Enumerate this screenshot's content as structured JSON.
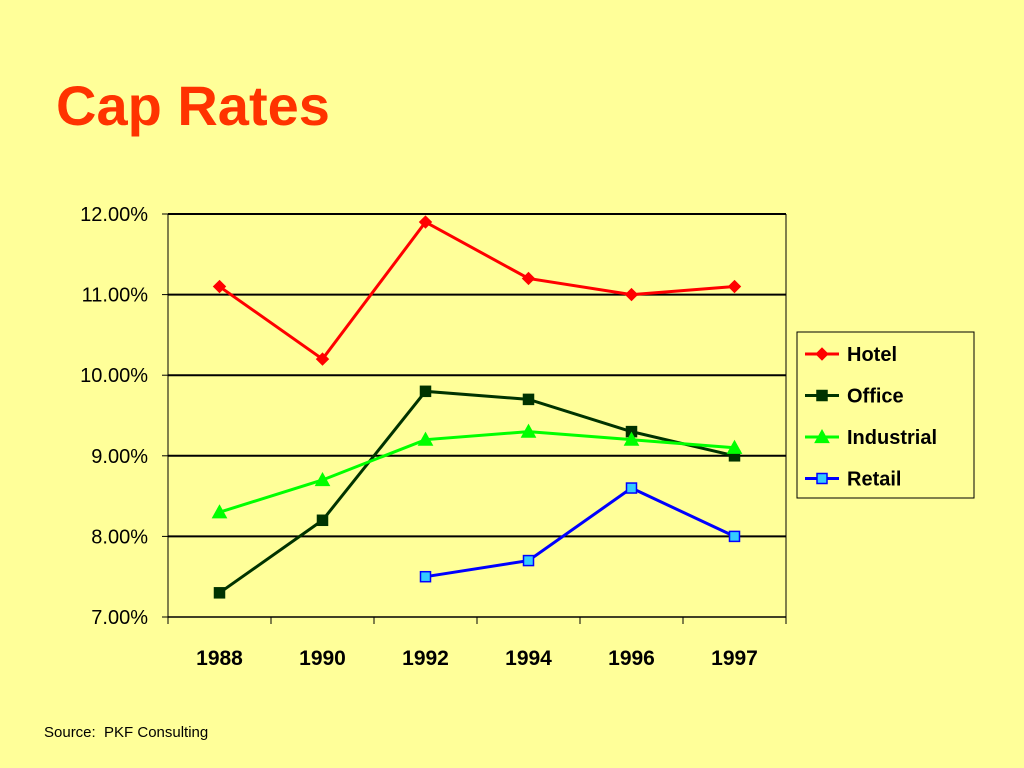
{
  "slide": {
    "title": "Cap Rates",
    "source": "Source:  PKF Consulting"
  },
  "chart_data": {
    "type": "line",
    "title": "",
    "xlabel": "",
    "ylabel": "",
    "categories": [
      "1988",
      "1990",
      "1992",
      "1994",
      "1996",
      "1997"
    ],
    "ylim": [
      7.0,
      12.0
    ],
    "yticks": [
      7.0,
      8.0,
      9.0,
      10.0,
      11.0,
      12.0
    ],
    "ytick_labels": [
      "7.00%",
      "8.00%",
      "9.00%",
      "10.00%",
      "11.00%",
      "12.00%"
    ],
    "grid": "horizontal",
    "legend_position": "right",
    "series": [
      {
        "name": "Hotel",
        "color": "#ff0000",
        "marker": "diamond",
        "marker_color": "#ff0000",
        "values": [
          11.1,
          10.2,
          11.9,
          11.2,
          11.0,
          11.1
        ]
      },
      {
        "name": "Office",
        "color": "#003300",
        "marker": "square",
        "marker_color": "#003300",
        "values": [
          7.3,
          8.2,
          9.8,
          9.7,
          9.3,
          9.0
        ]
      },
      {
        "name": "Industrial",
        "color": "#00ff00",
        "marker": "triangle",
        "marker_color": "#00ff00",
        "values": [
          8.3,
          8.7,
          9.2,
          9.3,
          9.2,
          9.1
        ]
      },
      {
        "name": "Retail",
        "color": "#0000ff",
        "marker": "square",
        "marker_color": "#33ccff",
        "values": [
          null,
          null,
          7.5,
          7.7,
          8.6,
          8.0
        ]
      }
    ]
  }
}
